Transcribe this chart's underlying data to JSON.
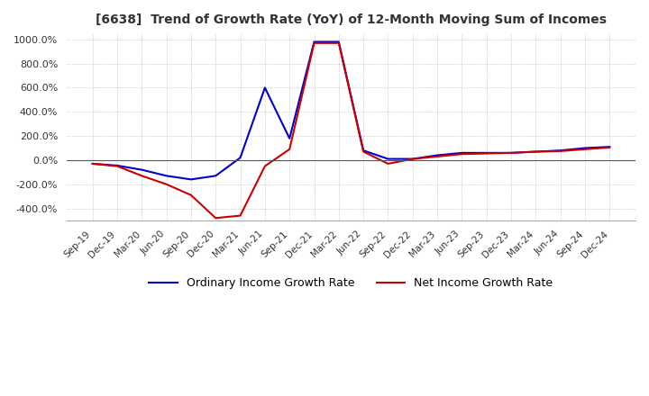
{
  "title": "[6638]  Trend of Growth Rate (YoY) of 12-Month Moving Sum of Incomes",
  "title_fontsize": 10,
  "ylim": [
    -500,
    1050
  ],
  "yticks": [
    -400,
    -200,
    0,
    200,
    400,
    600,
    800,
    1000
  ],
  "background_color": "#ffffff",
  "plot_bg_color": "#ffffff",
  "grid_color": "#aaaaaa",
  "legend_labels": [
    "Ordinary Income Growth Rate",
    "Net Income Growth Rate"
  ],
  "line_colors": [
    "#0000cc",
    "#cc0000"
  ],
  "x_labels": [
    "Sep-19",
    "Dec-19",
    "Mar-20",
    "Jun-20",
    "Sep-20",
    "Dec-20",
    "Mar-21",
    "Jun-21",
    "Sep-21",
    "Dec-21",
    "Mar-22",
    "Jun-22",
    "Sep-22",
    "Dec-22",
    "Mar-23",
    "Jun-23",
    "Sep-23",
    "Dec-23",
    "Mar-24",
    "Jun-24",
    "Sep-24",
    "Dec-24"
  ],
  "ordinary_income": [
    -30,
    -45,
    -80,
    -130,
    -160,
    -130,
    20,
    600,
    180,
    980,
    980,
    80,
    10,
    10,
    40,
    60,
    60,
    60,
    70,
    80,
    100,
    110
  ],
  "net_income": [
    -30,
    -50,
    -130,
    -200,
    -290,
    -480,
    -460,
    -50,
    90,
    970,
    970,
    70,
    -30,
    10,
    30,
    50,
    55,
    60,
    70,
    75,
    90,
    105
  ]
}
